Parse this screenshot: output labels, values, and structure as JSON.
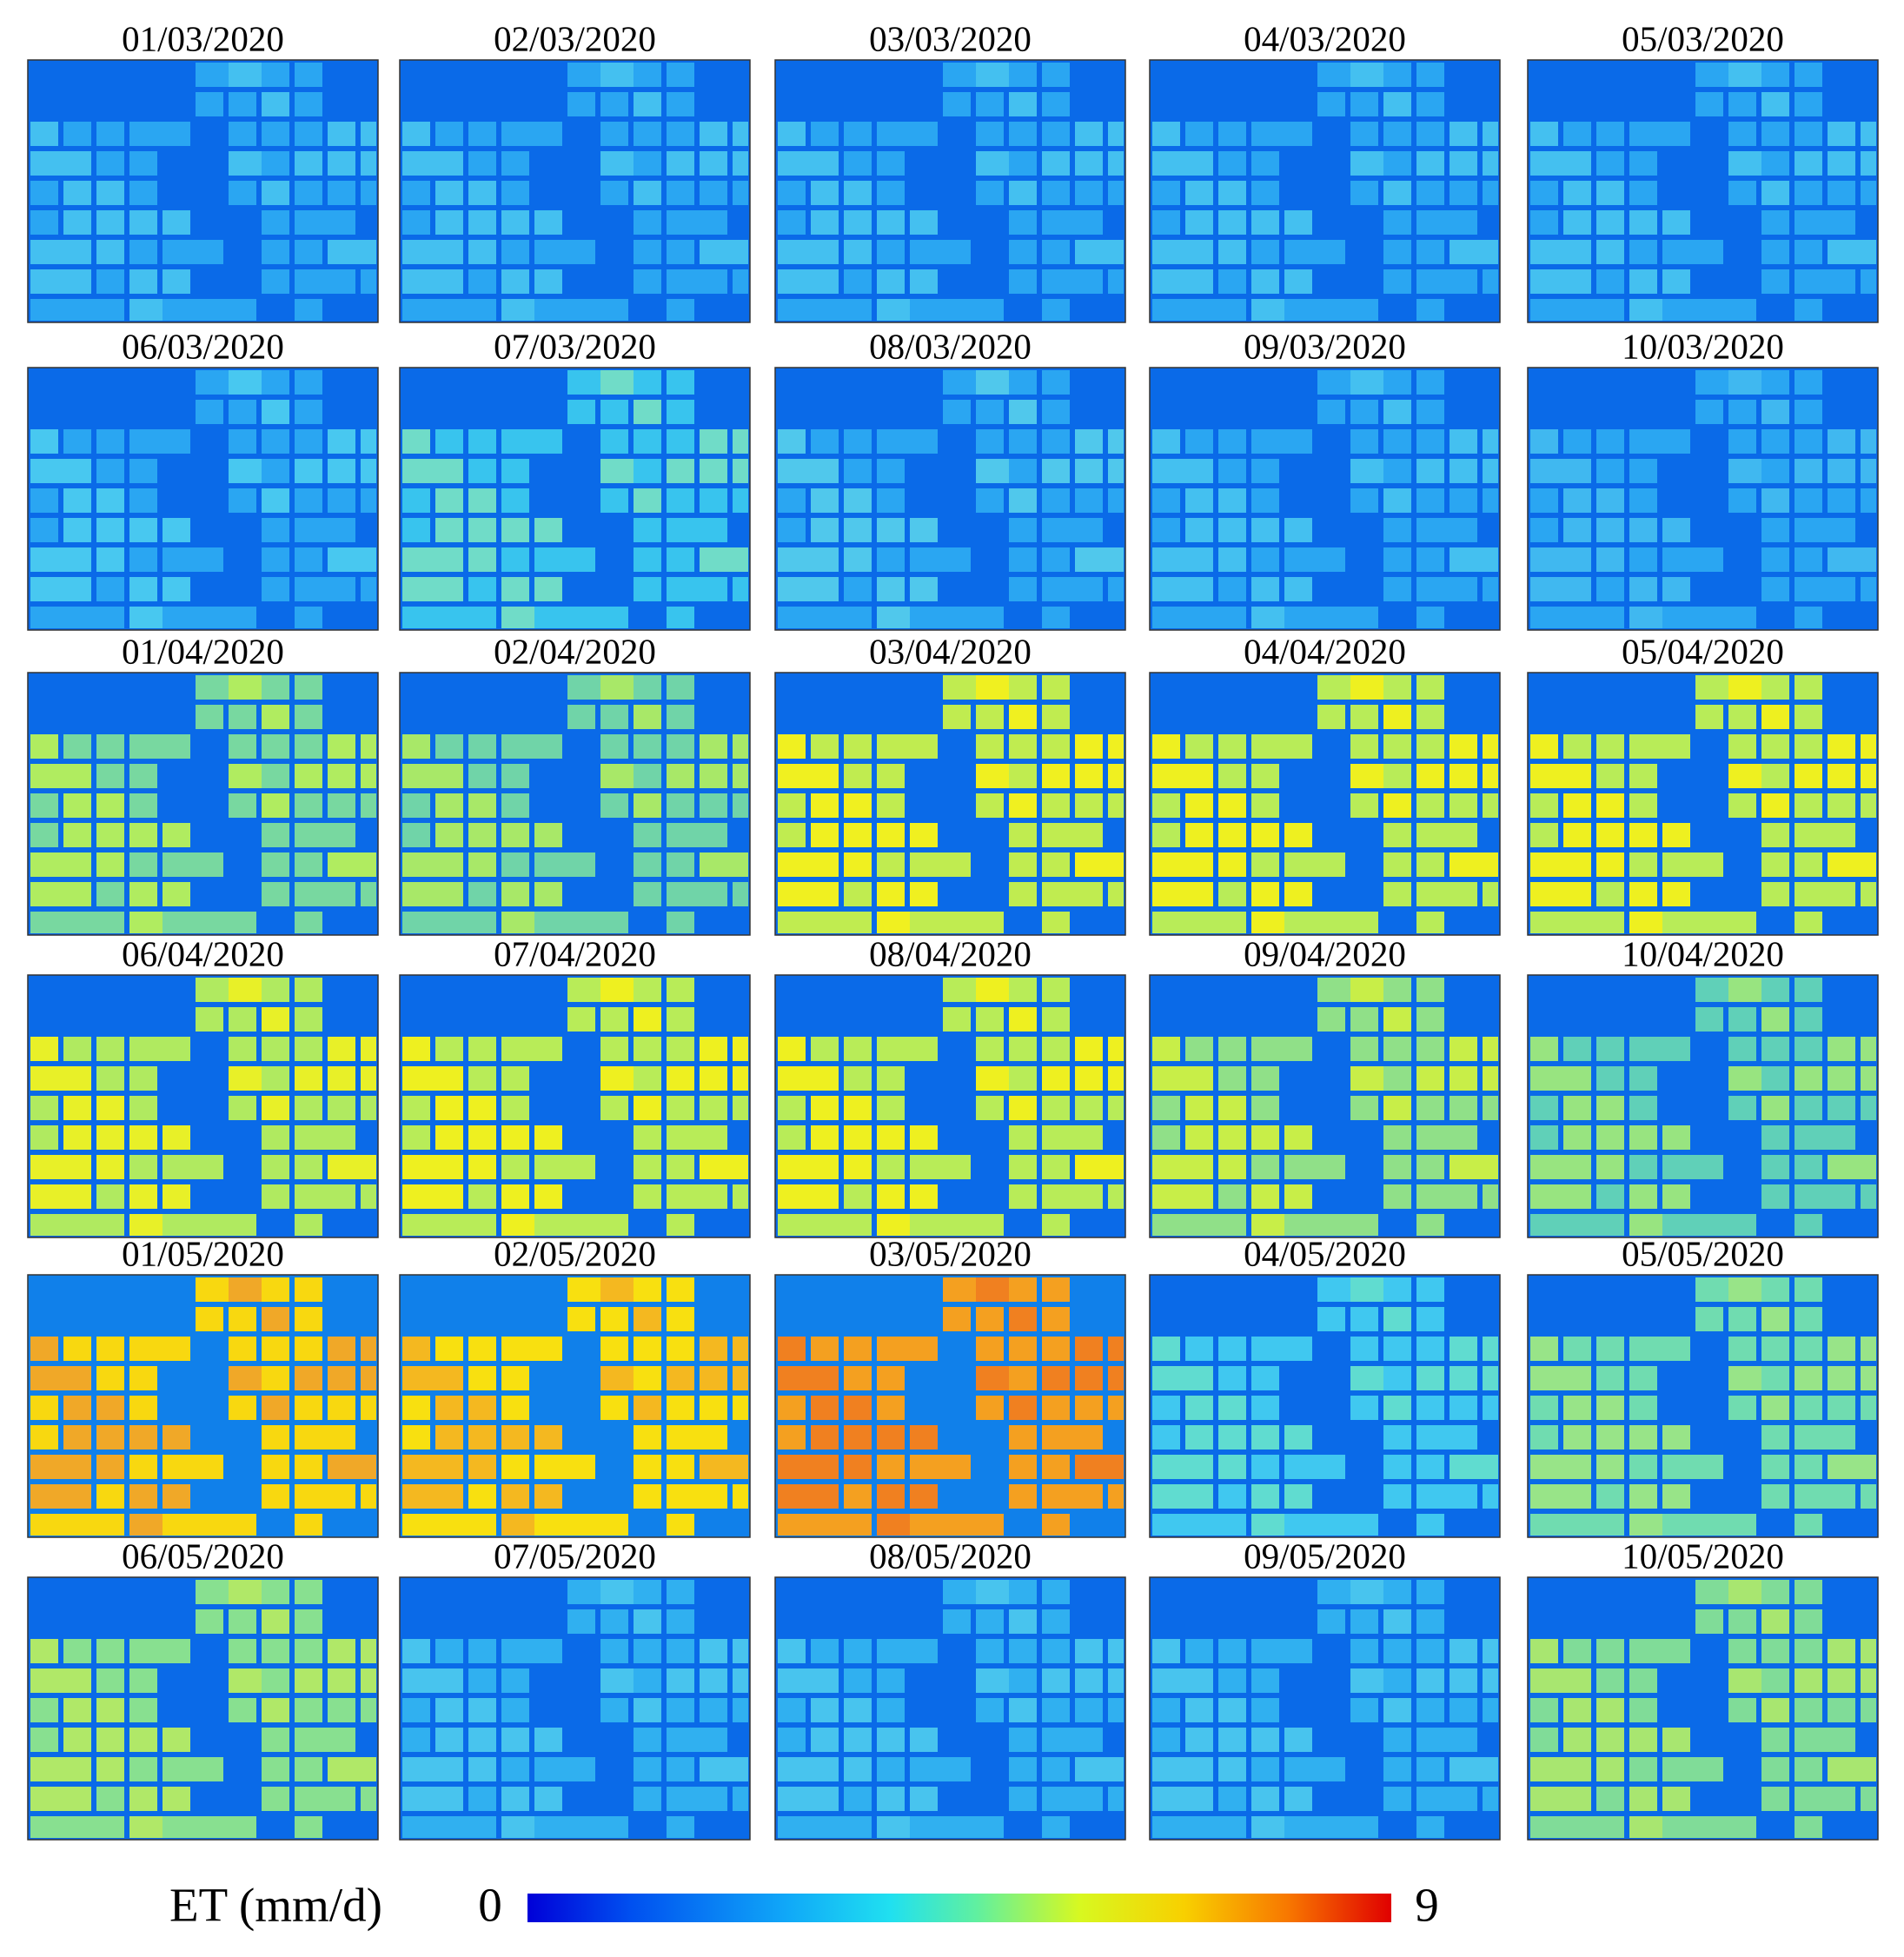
{
  "panels": [
    {
      "date": "01/03/2020"
    },
    {
      "date": "02/03/2020"
    },
    {
      "date": "03/03/2020"
    },
    {
      "date": "04/03/2020"
    },
    {
      "date": "05/03/2020"
    },
    {
      "date": "06/03/2020"
    },
    {
      "date": "07/03/2020"
    },
    {
      "date": "08/03/2020"
    },
    {
      "date": "09/03/2020"
    },
    {
      "date": "10/03/2020"
    },
    {
      "date": "01/04/2020"
    },
    {
      "date": "02/04/2020"
    },
    {
      "date": "03/04/2020"
    },
    {
      "date": "04/04/2020"
    },
    {
      "date": "05/04/2020"
    },
    {
      "date": "06/04/2020"
    },
    {
      "date": "07/04/2020"
    },
    {
      "date": "08/04/2020"
    },
    {
      "date": "09/04/2020"
    },
    {
      "date": "10/04/2020"
    },
    {
      "date": "01/05/2020"
    },
    {
      "date": "02/05/2020"
    },
    {
      "date": "03/05/2020"
    },
    {
      "date": "04/05/2020"
    },
    {
      "date": "05/05/2020"
    },
    {
      "date": "06/05/2020"
    },
    {
      "date": "07/05/2020"
    },
    {
      "date": "08/05/2020"
    },
    {
      "date": "09/05/2020"
    },
    {
      "date": "10/05/2020"
    }
  ],
  "colorbar": {
    "label": "ET (mm/d)",
    "min": 0,
    "max": 9
  }
}
